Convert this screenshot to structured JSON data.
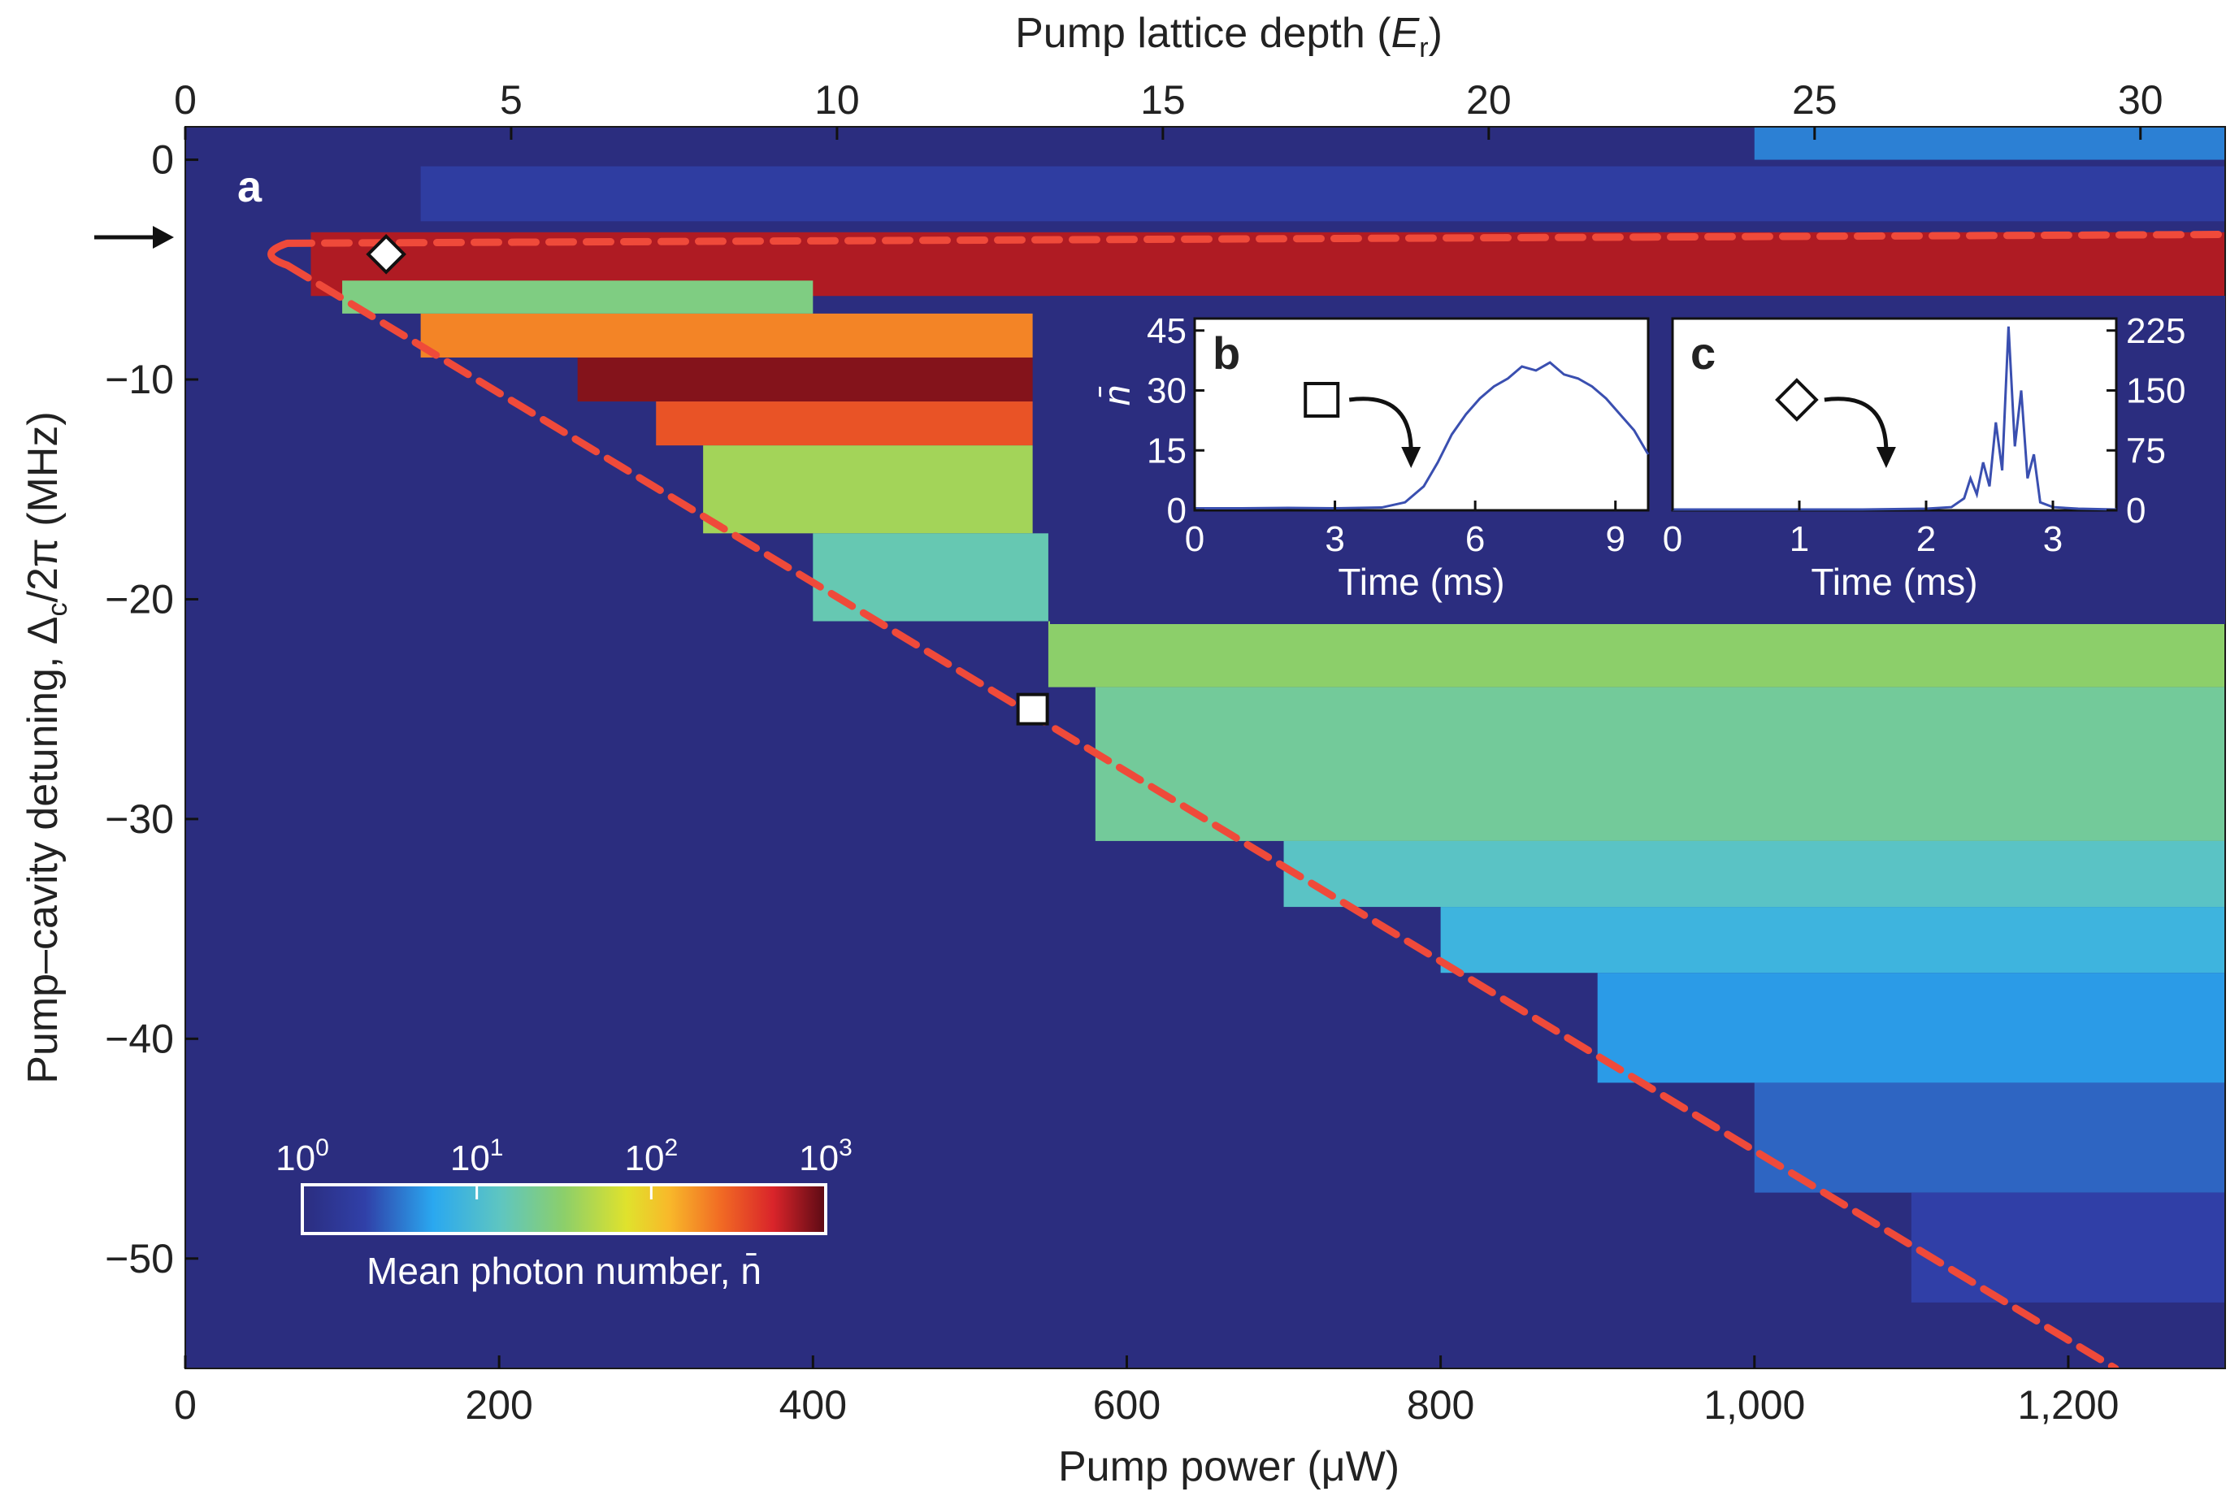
{
  "chart_data": [
    {
      "panel": "a",
      "type": "heatmap",
      "panel_label": "a",
      "xlabel": "Pump power (μW)",
      "x2label_prefix": "Pump lattice depth (",
      "x2label_sym": "E",
      "x2label_sub": "r",
      "x2label_suffix": ")",
      "ylabel_prefix": "Pump–cavity detuning, Δ",
      "ylabel_sub": "c",
      "ylabel_suffix": "/2π (MHz)",
      "xlim": [
        0,
        1300
      ],
      "ylim": [
        -55,
        1.5
      ],
      "x2lim": [
        0,
        31.3
      ],
      "xticks": [
        0,
        200,
        400,
        600,
        800,
        1000,
        1200
      ],
      "xticklabels": [
        "0",
        "200",
        "400",
        "600",
        "800",
        "1,000",
        "1,200"
      ],
      "x2ticks": [
        0,
        5,
        10,
        15,
        20,
        25,
        30
      ],
      "x2ticklabels": [
        "0",
        "5",
        "10",
        "15",
        "20",
        "25",
        "30"
      ],
      "yticks": [
        0,
        -10,
        -20,
        -30,
        -40,
        -50
      ],
      "yticklabels": [
        "0",
        "−10",
        "−20",
        "−30",
        "−40",
        "−50"
      ],
      "colorbar": {
        "label": "Mean photon number, n̄",
        "scale": "log",
        "range": [
          1,
          1000
        ],
        "ticks": [
          {
            "base": "10",
            "exp": "0"
          },
          {
            "base": "10",
            "exp": "1"
          },
          {
            "base": "10",
            "exp": "2"
          },
          {
            "base": "10",
            "exp": "3"
          }
        ]
      },
      "boundary_upper": {
        "x": [
          65,
          1300
        ],
        "y": [
          -3.8,
          -3.4
        ]
      },
      "boundary_lower": {
        "x": [
          65,
          1230
        ],
        "y": [
          -4.8,
          -55
        ]
      },
      "markers": [
        {
          "shape": "diamond",
          "x": 128,
          "y": -4.3
        },
        {
          "shape": "square",
          "x": 540,
          "y": -25
        }
      ],
      "arrow_at_detuning": -3.3,
      "regions": [
        {
          "x": [
            80,
            1300
          ],
          "y": [
            -6.2,
            -3.3
          ],
          "log_n": 2.8
        },
        {
          "x": [
            250,
            540
          ],
          "y": [
            -11,
            -9
          ],
          "log_n": 2.9
        },
        {
          "x": [
            300,
            540
          ],
          "y": [
            -13,
            -11
          ],
          "log_n": 2.5
        },
        {
          "x": [
            330,
            540
          ],
          "y": [
            -17,
            -13
          ],
          "log_n": 1.6
        },
        {
          "x": [
            150,
            540
          ],
          "y": [
            -9,
            -7
          ],
          "log_n": 2.3
        },
        {
          "x": [
            100,
            400
          ],
          "y": [
            -7,
            -5.5
          ],
          "log_n": 1.4
        },
        {
          "x": [
            400,
            550
          ],
          "y": [
            -21,
            -17
          ],
          "log_n": 1.2
        },
        {
          "x": [
            550,
            1300
          ],
          "y": [
            -24,
            -21
          ],
          "log_n": 1.5
        },
        {
          "x": [
            580,
            1300
          ],
          "y": [
            -31,
            -24
          ],
          "log_n": 1.3
        },
        {
          "x": [
            700,
            1300
          ],
          "y": [
            -34,
            -31
          ],
          "log_n": 1.1
        },
        {
          "x": [
            800,
            1300
          ],
          "y": [
            -37,
            -34
          ],
          "log_n": 0.9
        },
        {
          "x": [
            900,
            1300
          ],
          "y": [
            -42,
            -37
          ],
          "log_n": 0.7
        },
        {
          "x": [
            1000,
            1300
          ],
          "y": [
            -47,
            -42
          ],
          "log_n": 0.5
        },
        {
          "x": [
            1100,
            1300
          ],
          "y": [
            -52,
            -47
          ],
          "log_n": 0.35
        },
        {
          "x": [
            180,
            300
          ],
          "y": [
            -2.5,
            -0.5
          ],
          "log_n": 1.0
        },
        {
          "x": [
            150,
            1300
          ],
          "y": [
            -2.8,
            -0.3
          ],
          "log_n": 0.3
        },
        {
          "x": [
            1000,
            1300
          ],
          "y": [
            0,
            1.5
          ],
          "log_n": 0.6
        }
      ]
    },
    {
      "panel": "b",
      "type": "line",
      "panel_label": "b",
      "xlabel": "Time (ms)",
      "ylabel": "n̄",
      "xlim": [
        0,
        9.7
      ],
      "ylim": [
        0,
        48
      ],
      "xticks": [
        0,
        3,
        6,
        9
      ],
      "xticklabels": [
        "0",
        "3",
        "6",
        "9"
      ],
      "yticks": [
        0,
        15,
        30,
        45
      ],
      "yticklabels": [
        "0",
        "15",
        "30",
        "45"
      ],
      "marker": "square",
      "series": [
        {
          "name": "n̄(t)",
          "x": [
            0,
            1,
            2,
            3,
            4,
            4.5,
            4.9,
            5.2,
            5.5,
            5.8,
            6.1,
            6.4,
            6.7,
            7.0,
            7.3,
            7.6,
            7.9,
            8.2,
            8.5,
            8.8,
            9.1,
            9.4,
            9.7
          ],
          "y": [
            0.5,
            0.5,
            0.6,
            0.5,
            0.7,
            2,
            6,
            12,
            19,
            24,
            28,
            31,
            33,
            36,
            35,
            37,
            34,
            33,
            31,
            28,
            24,
            20,
            14
          ]
        }
      ]
    },
    {
      "panel": "c",
      "type": "line",
      "panel_label": "c",
      "xlabel": "Time (ms)",
      "xlim": [
        0,
        3.5
      ],
      "ylim": [
        0,
        240
      ],
      "xticks": [
        0,
        1,
        2,
        3
      ],
      "xticklabels": [
        "0",
        "1",
        "2",
        "3"
      ],
      "yticks": [
        0,
        75,
        150,
        225
      ],
      "yticklabels": [
        "0",
        "75",
        "150",
        "225"
      ],
      "marker": "diamond",
      "series": [
        {
          "name": "n̄(t)",
          "x": [
            0,
            0.5,
            1.0,
            1.5,
            2.0,
            2.2,
            2.3,
            2.35,
            2.4,
            2.45,
            2.5,
            2.55,
            2.6,
            2.65,
            2.7,
            2.75,
            2.8,
            2.85,
            2.9,
            3.0,
            3.2,
            3.5
          ],
          "y": [
            1,
            1,
            1,
            1,
            2,
            4,
            15,
            40,
            20,
            60,
            30,
            110,
            50,
            230,
            80,
            150,
            40,
            70,
            10,
            4,
            2,
            1
          ]
        }
      ]
    }
  ]
}
